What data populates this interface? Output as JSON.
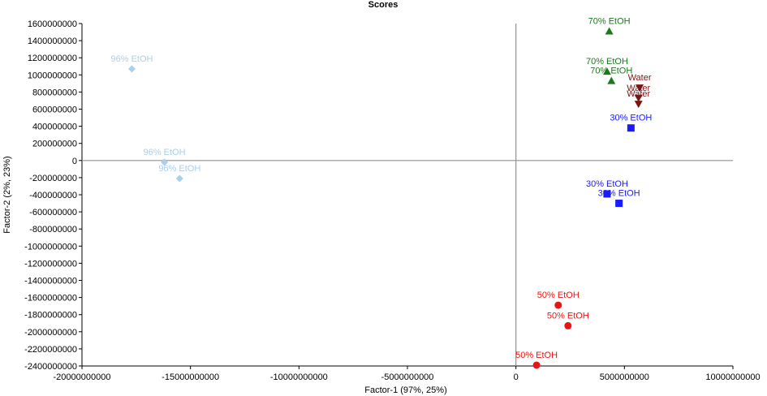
{
  "chart_data": {
    "type": "scatter",
    "title": "Scores",
    "xlabel": "Factor-1 (97%, 25%)",
    "ylabel": "Factor-2 (2%, 23%)",
    "xlim": [
      -20000000000,
      10000000000
    ],
    "ylim": [
      -2400000000,
      1600000000
    ],
    "x_ticks": [
      -20000000000,
      -15000000000,
      -10000000000,
      -5000000000,
      0,
      5000000000,
      10000000000
    ],
    "x_tick_labels": [
      "-20000000000",
      "-15000000000",
      "-10000000000",
      "-5000000000",
      "0",
      "5000000000",
      "10000000000"
    ],
    "y_ticks": [
      1600000000,
      1400000000,
      1200000000,
      1000000000,
      800000000,
      600000000,
      400000000,
      200000000,
      0,
      -200000000,
      -400000000,
      -600000000,
      -800000000,
      -1000000000,
      -1200000000,
      -1400000000,
      -1600000000,
      -1800000000,
      -2000000000,
      -2200000000,
      -2400000000
    ],
    "y_tick_labels": [
      "1600000000",
      "1400000000",
      "1200000000",
      "1000000000",
      "800000000",
      "600000000",
      "400000000",
      "200000000",
      "0",
      "-200000000",
      "-400000000",
      "-600000000",
      "-800000000",
      "-1000000000",
      "-1200000000",
      "-1400000000",
      "-1600000000",
      "-1800000000",
      "-2000000000",
      "-2200000000",
      "-2400000000"
    ],
    "grid": false,
    "series": [
      {
        "marker": "diamond",
        "color": "#a9cfea",
        "points": [
          {
            "x": -17700000000,
            "y": 1070000000,
            "label": "96% EtOH"
          },
          {
            "x": -16200000000,
            "y": -20000000,
            "label": "96% EtOH"
          },
          {
            "x": -15500000000,
            "y": -210000000,
            "label": "96% EtOH"
          }
        ]
      },
      {
        "marker": "triangle-up",
        "color": "#1a7a1a",
        "points": [
          {
            "x": 4300000000,
            "y": 1510000000,
            "label": "70% EtOH"
          },
          {
            "x": 4200000000,
            "y": 1040000000,
            "label": "70% EtOH"
          },
          {
            "x": 4400000000,
            "y": 930000000,
            "label": "70% EtOH"
          }
        ]
      },
      {
        "marker": "triangle-down",
        "color": "#7a1515",
        "points": [
          {
            "x": 5700000000,
            "y": 850000000,
            "label": "Water"
          },
          {
            "x": 5650000000,
            "y": 730000000,
            "label": "Water"
          },
          {
            "x": 5650000000,
            "y": 660000000,
            "label": "Water"
          }
        ]
      },
      {
        "marker": "square",
        "color": "#1a1aff",
        "points": [
          {
            "x": 5300000000,
            "y": 380000000,
            "label": "30% EtOH"
          },
          {
            "x": 4200000000,
            "y": -390000000,
            "label": "30% EtOH"
          },
          {
            "x": 4750000000,
            "y": -500000000,
            "label": "30% EtOH"
          }
        ]
      },
      {
        "marker": "circle",
        "color": "#e81515",
        "points": [
          {
            "x": 1950000000,
            "y": -1690000000,
            "label": "50% EtOH"
          },
          {
            "x": 2400000000,
            "y": -1930000000,
            "label": "50% EtOH"
          },
          {
            "x": 950000000,
            "y": -2390000000,
            "label": "50% EtOH"
          }
        ]
      }
    ]
  }
}
